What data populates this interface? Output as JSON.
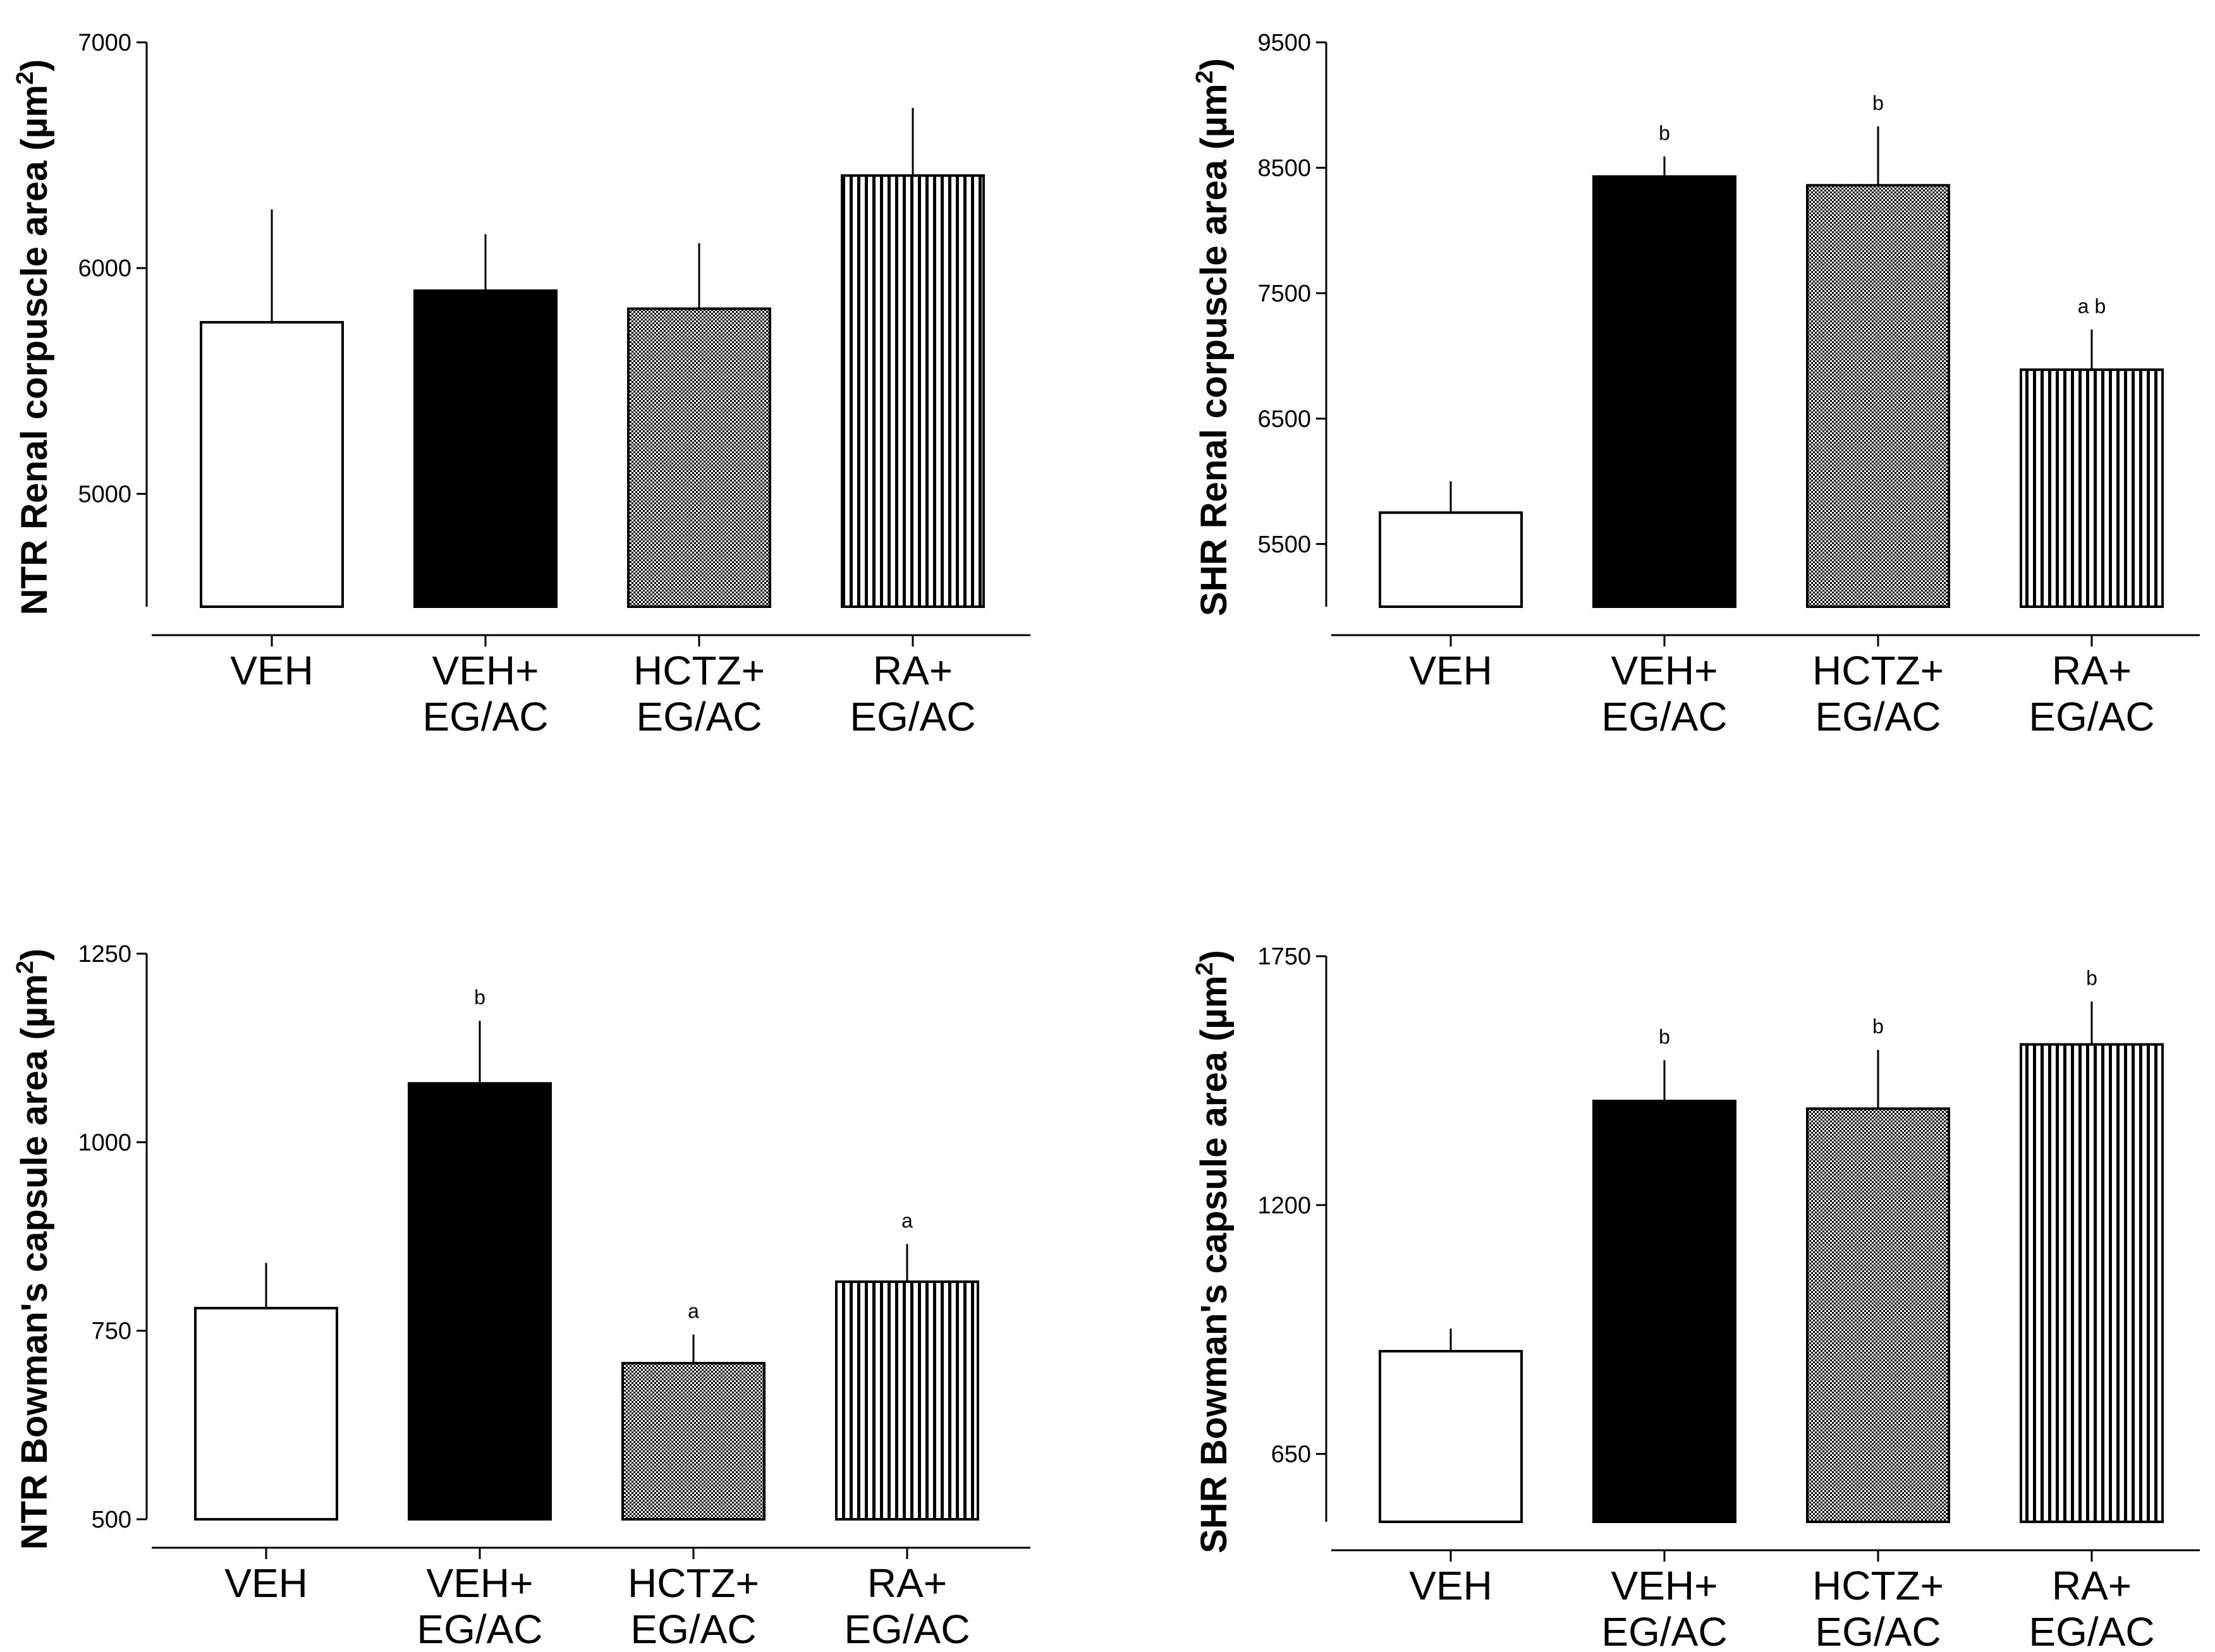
{
  "chart_data": [
    {
      "type": "bar",
      "title": "",
      "ylabel": "NTR Renal corpuscle area (µm²)",
      "ylabel_main": "NTR Renal corpuscle area (µm",
      "ylabel_sup": "2",
      "ylabel_close": ")",
      "ylim": [
        4500,
        7000
      ],
      "yticks": [
        5000,
        6000,
        7000
      ],
      "categories": [
        [
          "VEH"
        ],
        [
          "VEH+",
          "EG/AC"
        ],
        [
          "HCTZ+",
          "EG/AC"
        ],
        [
          "RA+",
          "EG/AC"
        ]
      ],
      "values": [
        5760,
        5900,
        5820,
        6410
      ],
      "errors": [
        500,
        250,
        290,
        300
      ],
      "patterns": [
        "white",
        "black",
        "checker",
        "vstripe"
      ],
      "sig": [
        "",
        "",
        "",
        ""
      ]
    },
    {
      "type": "bar",
      "title": "",
      "ylabel": "SHR Renal corpuscle area (µm²)",
      "ylabel_main": "SHR Renal corpuscle area (µm",
      "ylabel_sup": "2",
      "ylabel_close": ")",
      "ylim": [
        5000,
        9500
      ],
      "yticks": [
        5500,
        6500,
        7500,
        8500,
        9500
      ],
      "categories": [
        [
          "VEH"
        ],
        [
          "VEH+",
          "EG/AC"
        ],
        [
          "HCTZ+",
          "EG/AC"
        ],
        [
          "RA+",
          "EG/AC"
        ]
      ],
      "values": [
        5750,
        8430,
        8360,
        6890
      ],
      "errors": [
        250,
        160,
        470,
        320
      ],
      "patterns": [
        "white",
        "black",
        "checker",
        "vstripe"
      ],
      "sig": [
        "",
        "b",
        "b",
        "a b"
      ]
    },
    {
      "type": "bar",
      "title": "",
      "ylabel": "NTR Bowman's capsule area (µm²)",
      "ylabel_main": "NTR Bowman's capsule area (µm",
      "ylabel_sup": "2",
      "ylabel_close": ")",
      "ylim": [
        500,
        1250
      ],
      "yticks": [
        500,
        750,
        1000,
        1250
      ],
      "categories": [
        [
          "VEH"
        ],
        [
          "VEH+",
          "EG/AC"
        ],
        [
          "HCTZ+",
          "EG/AC"
        ],
        [
          "RA+",
          "EG/AC"
        ]
      ],
      "values": [
        780,
        1078,
        707,
        815
      ],
      "errors": [
        60,
        83,
        38,
        50
      ],
      "patterns": [
        "white",
        "black",
        "checker",
        "vstripe"
      ],
      "sig": [
        "",
        "b",
        "a",
        "a"
      ]
    },
    {
      "type": "bar",
      "title": "",
      "ylabel": "SHR Bowman's capsule area (µm²)",
      "ylabel_main": "SHR Bowman's capsule area (µm",
      "ylabel_sup": "2",
      "ylabel_close": ")",
      "ylim": [
        500,
        1750
      ],
      "yticks": [
        650,
        1200,
        1750
      ],
      "categories": [
        [
          "VEH"
        ],
        [
          "VEH+",
          "EG/AC"
        ],
        [
          "HCTZ+",
          "EG/AC"
        ],
        [
          "RA+",
          "EG/AC"
        ]
      ],
      "values": [
        877,
        1430,
        1413,
        1555
      ],
      "errors": [
        50,
        90,
        130,
        95
      ],
      "patterns": [
        "white",
        "black",
        "checker",
        "vstripe"
      ],
      "sig": [
        "",
        "b",
        "b",
        "b"
      ]
    }
  ]
}
